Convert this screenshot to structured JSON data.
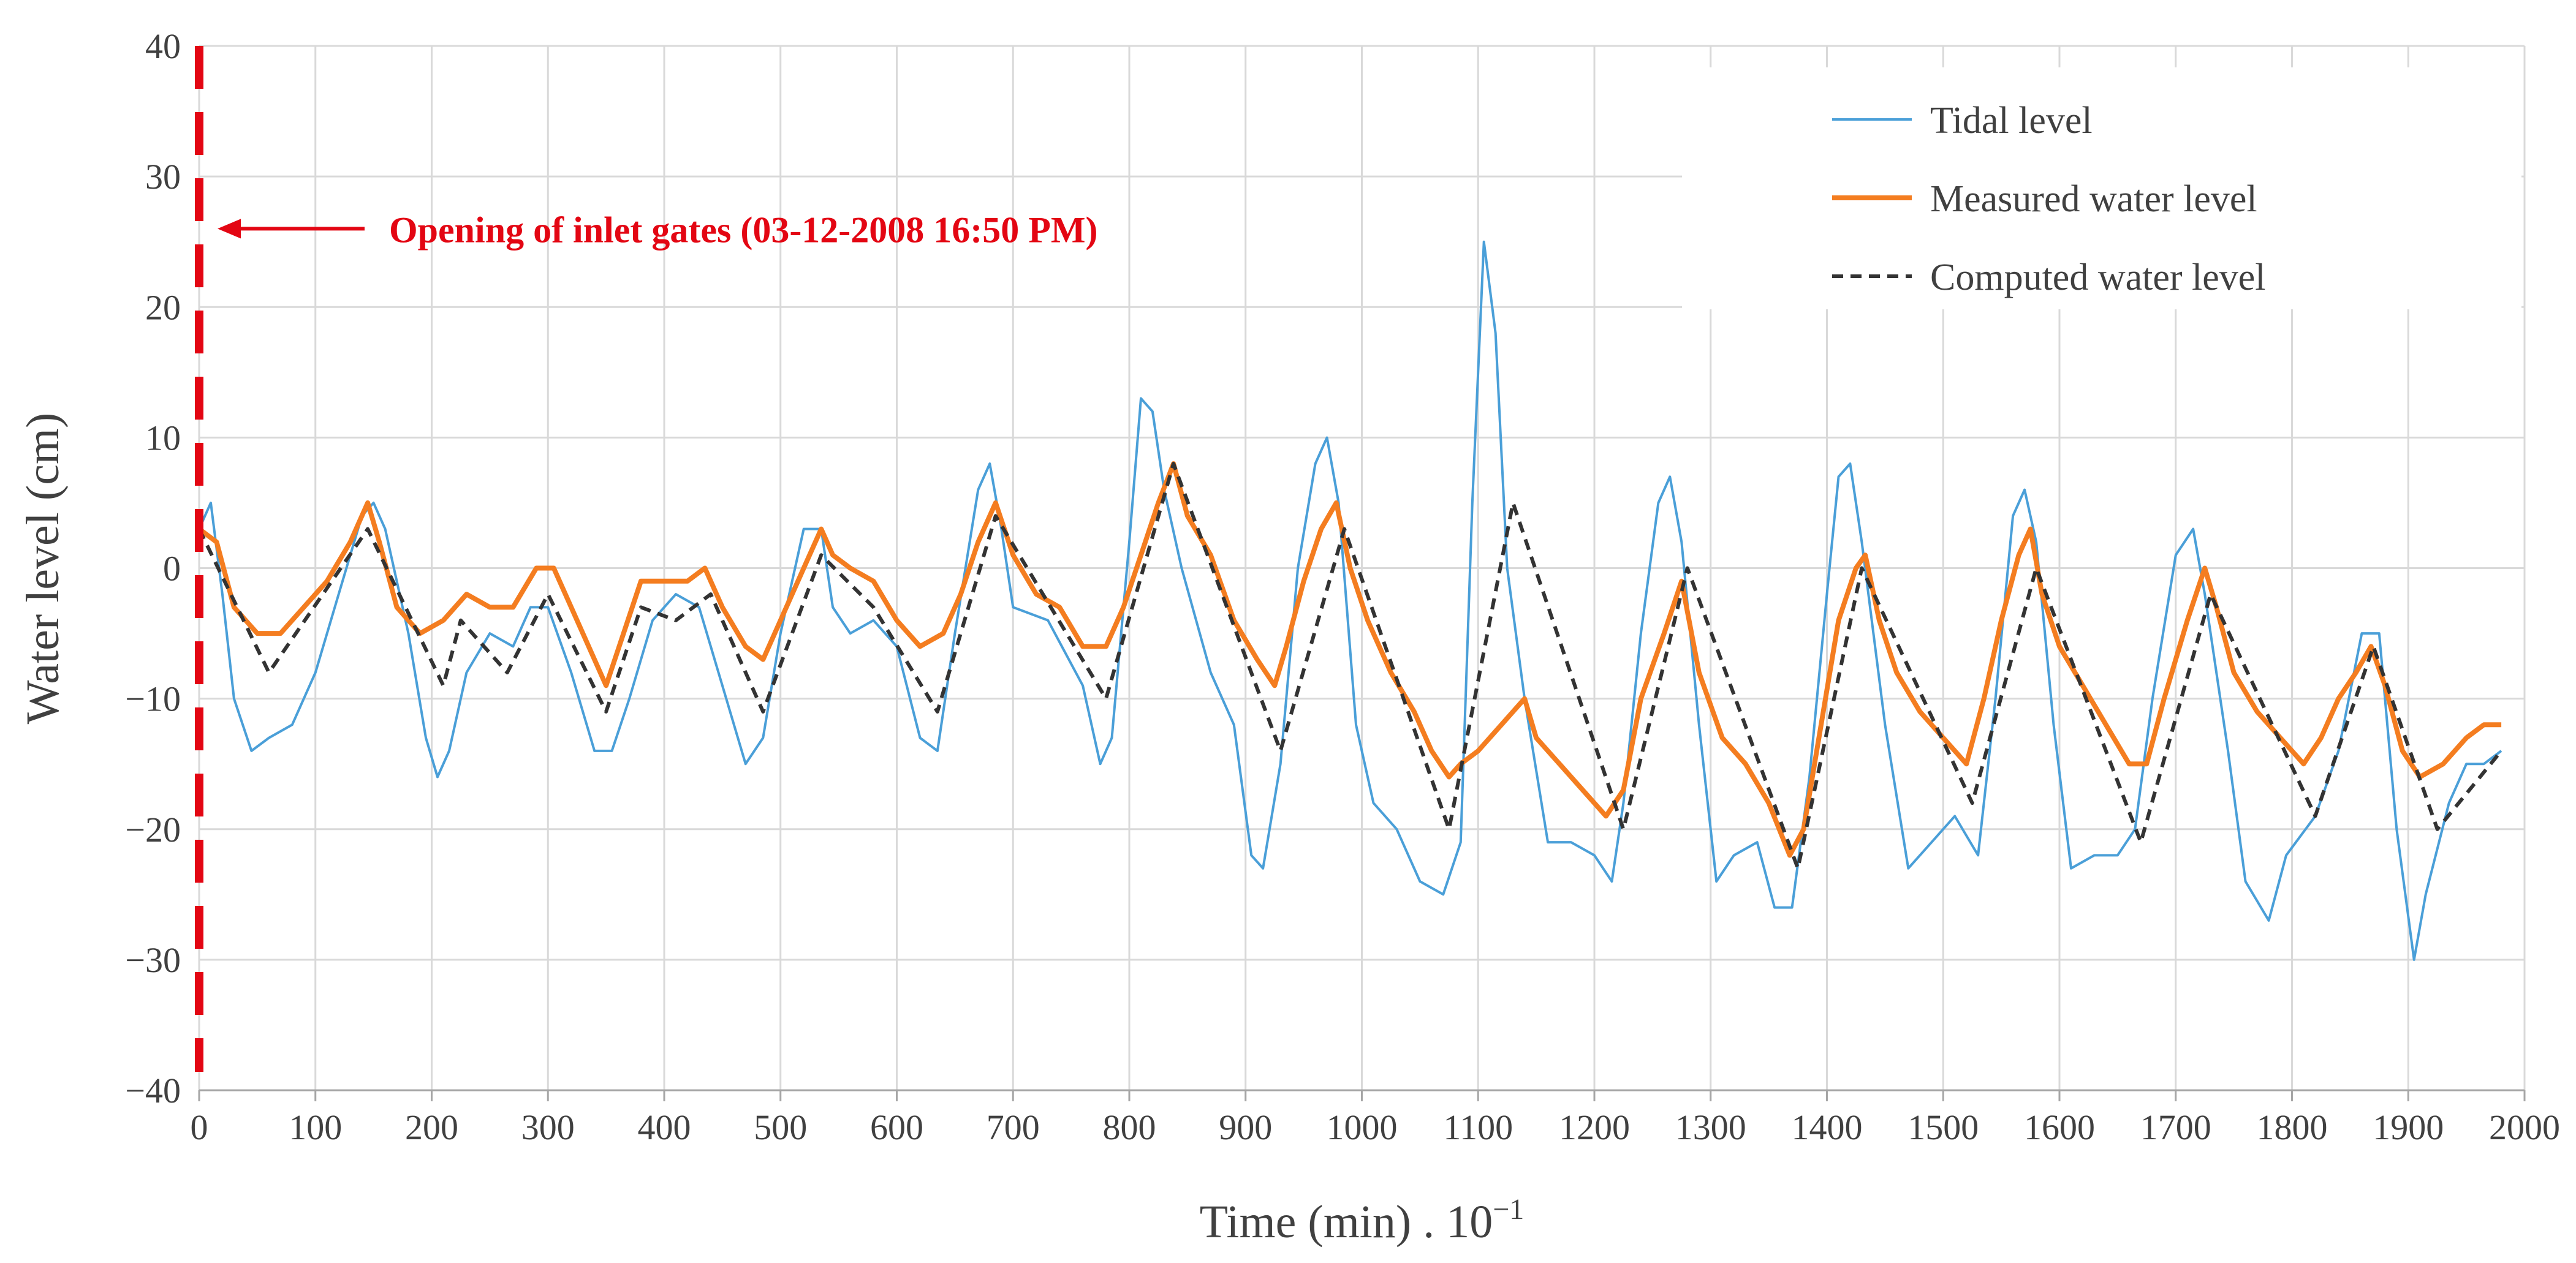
{
  "chart_data": {
    "type": "line",
    "title": "",
    "xlabel": "Time (min) . 10",
    "xlabel_exponent": "−1",
    "ylabel": "Water level (cm)",
    "xlim": [
      0,
      2000
    ],
    "ylim": [
      -40,
      40
    ],
    "x_ticks": [
      0,
      100,
      200,
      300,
      400,
      500,
      600,
      700,
      800,
      900,
      1000,
      1100,
      1200,
      1300,
      1400,
      1500,
      1600,
      1700,
      1800,
      1900,
      2000
    ],
    "y_ticks": [
      40,
      30,
      20,
      10,
      0,
      -10,
      -20,
      -30,
      -40
    ],
    "y_tick_labels": [
      "40",
      "30",
      "20",
      "10",
      "0",
      "−10",
      "−20",
      "−30",
      "−40"
    ],
    "grid": true,
    "legend_position": "top-right",
    "series": [
      {
        "name": "Tidal level",
        "color": "#4a9fd8",
        "style": "solid",
        "points": [
          [
            0,
            3
          ],
          [
            10,
            5
          ],
          [
            20,
            -2
          ],
          [
            30,
            -10
          ],
          [
            45,
            -14
          ],
          [
            60,
            -13
          ],
          [
            80,
            -12
          ],
          [
            100,
            -8
          ],
          [
            120,
            -2
          ],
          [
            140,
            4
          ],
          [
            150,
            5
          ],
          [
            160,
            3
          ],
          [
            180,
            -5
          ],
          [
            195,
            -13
          ],
          [
            205,
            -16
          ],
          [
            215,
            -14
          ],
          [
            230,
            -8
          ],
          [
            250,
            -5
          ],
          [
            270,
            -6
          ],
          [
            285,
            -3
          ],
          [
            300,
            -3
          ],
          [
            320,
            -8
          ],
          [
            340,
            -14
          ],
          [
            355,
            -14
          ],
          [
            370,
            -10
          ],
          [
            390,
            -4
          ],
          [
            410,
            -2
          ],
          [
            430,
            -3
          ],
          [
            450,
            -9
          ],
          [
            470,
            -15
          ],
          [
            485,
            -13
          ],
          [
            500,
            -5
          ],
          [
            520,
            3
          ],
          [
            535,
            3
          ],
          [
            545,
            -3
          ],
          [
            560,
            -5
          ],
          [
            580,
            -4
          ],
          [
            600,
            -6
          ],
          [
            620,
            -13
          ],
          [
            635,
            -14
          ],
          [
            650,
            -5
          ],
          [
            670,
            6
          ],
          [
            680,
            8
          ],
          [
            690,
            3
          ],
          [
            700,
            -3
          ],
          [
            730,
            -4
          ],
          [
            760,
            -9
          ],
          [
            775,
            -15
          ],
          [
            785,
            -13
          ],
          [
            800,
            2
          ],
          [
            810,
            13
          ],
          [
            820,
            12
          ],
          [
            830,
            6
          ],
          [
            845,
            0
          ],
          [
            870,
            -8
          ],
          [
            890,
            -12
          ],
          [
            905,
            -22
          ],
          [
            915,
            -23
          ],
          [
            930,
            -15
          ],
          [
            945,
            0
          ],
          [
            960,
            8
          ],
          [
            970,
            10
          ],
          [
            980,
            5
          ],
          [
            995,
            -12
          ],
          [
            1010,
            -18
          ],
          [
            1030,
            -20
          ],
          [
            1050,
            -24
          ],
          [
            1070,
            -25
          ],
          [
            1085,
            -21
          ],
          [
            1095,
            5
          ],
          [
            1105,
            25
          ],
          [
            1115,
            18
          ],
          [
            1125,
            0
          ],
          [
            1140,
            -10
          ],
          [
            1160,
            -21
          ],
          [
            1180,
            -21
          ],
          [
            1200,
            -22
          ],
          [
            1215,
            -24
          ],
          [
            1225,
            -18
          ],
          [
            1240,
            -5
          ],
          [
            1255,
            5
          ],
          [
            1265,
            7
          ],
          [
            1275,
            2
          ],
          [
            1290,
            -12
          ],
          [
            1305,
            -24
          ],
          [
            1320,
            -22
          ],
          [
            1340,
            -21
          ],
          [
            1355,
            -26
          ],
          [
            1370,
            -26
          ],
          [
            1385,
            -16
          ],
          [
            1400,
            -2
          ],
          [
            1410,
            7
          ],
          [
            1420,
            8
          ],
          [
            1430,
            2
          ],
          [
            1450,
            -12
          ],
          [
            1470,
            -23
          ],
          [
            1490,
            -21
          ],
          [
            1510,
            -19
          ],
          [
            1530,
            -22
          ],
          [
            1545,
            -10
          ],
          [
            1560,
            4
          ],
          [
            1570,
            6
          ],
          [
            1580,
            2
          ],
          [
            1595,
            -12
          ],
          [
            1610,
            -23
          ],
          [
            1630,
            -22
          ],
          [
            1650,
            -22
          ],
          [
            1665,
            -20
          ],
          [
            1680,
            -10
          ],
          [
            1700,
            1
          ],
          [
            1715,
            3
          ],
          [
            1725,
            -2
          ],
          [
            1745,
            -14
          ],
          [
            1760,
            -24
          ],
          [
            1780,
            -27
          ],
          [
            1795,
            -22
          ],
          [
            1820,
            -19
          ],
          [
            1840,
            -14
          ],
          [
            1860,
            -5
          ],
          [
            1875,
            -5
          ],
          [
            1890,
            -20
          ],
          [
            1905,
            -30
          ],
          [
            1915,
            -25
          ],
          [
            1935,
            -18
          ],
          [
            1950,
            -15
          ],
          [
            1965,
            -15
          ],
          [
            1980,
            -14
          ]
        ]
      },
      {
        "name": "Measured water level",
        "color": "#f47d20",
        "style": "solid",
        "points": [
          [
            0,
            3
          ],
          [
            15,
            2
          ],
          [
            30,
            -3
          ],
          [
            50,
            -5
          ],
          [
            70,
            -5
          ],
          [
            90,
            -3
          ],
          [
            110,
            -1
          ],
          [
            130,
            2
          ],
          [
            145,
            5
          ],
          [
            155,
            2
          ],
          [
            170,
            -3
          ],
          [
            190,
            -5
          ],
          [
            210,
            -4
          ],
          [
            230,
            -2
          ],
          [
            250,
            -3
          ],
          [
            270,
            -3
          ],
          [
            290,
            0
          ],
          [
            305,
            0
          ],
          [
            320,
            -3
          ],
          [
            340,
            -7
          ],
          [
            350,
            -9
          ],
          [
            365,
            -5
          ],
          [
            380,
            -1
          ],
          [
            400,
            -1
          ],
          [
            420,
            -1
          ],
          [
            435,
            0
          ],
          [
            450,
            -3
          ],
          [
            470,
            -6
          ],
          [
            485,
            -7
          ],
          [
            500,
            -4
          ],
          [
            520,
            0
          ],
          [
            535,
            3
          ],
          [
            545,
            1
          ],
          [
            560,
            0
          ],
          [
            580,
            -1
          ],
          [
            600,
            -4
          ],
          [
            620,
            -6
          ],
          [
            640,
            -5
          ],
          [
            655,
            -2
          ],
          [
            670,
            2
          ],
          [
            685,
            5
          ],
          [
            700,
            1
          ],
          [
            720,
            -2
          ],
          [
            740,
            -3
          ],
          [
            760,
            -6
          ],
          [
            780,
            -6
          ],
          [
            795,
            -3
          ],
          [
            810,
            1
          ],
          [
            825,
            5
          ],
          [
            838,
            8
          ],
          [
            850,
            4
          ],
          [
            870,
            1
          ],
          [
            890,
            -4
          ],
          [
            910,
            -7
          ],
          [
            925,
            -9
          ],
          [
            935,
            -6
          ],
          [
            950,
            -1
          ],
          [
            965,
            3
          ],
          [
            978,
            5
          ],
          [
            990,
            0
          ],
          [
            1005,
            -4
          ],
          [
            1025,
            -8
          ],
          [
            1045,
            -11
          ],
          [
            1060,
            -14
          ],
          [
            1075,
            -16
          ],
          [
            1085,
            -15
          ],
          [
            1100,
            -14
          ],
          [
            1120,
            -12
          ],
          [
            1140,
            -10
          ],
          [
            1150,
            -13
          ],
          [
            1170,
            -15
          ],
          [
            1190,
            -17
          ],
          [
            1210,
            -19
          ],
          [
            1225,
            -17
          ],
          [
            1240,
            -10
          ],
          [
            1260,
            -5
          ],
          [
            1275,
            -1
          ],
          [
            1290,
            -8
          ],
          [
            1310,
            -13
          ],
          [
            1330,
            -15
          ],
          [
            1350,
            -18
          ],
          [
            1368,
            -22
          ],
          [
            1380,
            -20
          ],
          [
            1395,
            -12
          ],
          [
            1410,
            -4
          ],
          [
            1425,
            0
          ],
          [
            1433,
            1
          ],
          [
            1445,
            -4
          ],
          [
            1460,
            -8
          ],
          [
            1480,
            -11
          ],
          [
            1500,
            -13
          ],
          [
            1520,
            -15
          ],
          [
            1535,
            -10
          ],
          [
            1550,
            -4
          ],
          [
            1565,
            1
          ],
          [
            1575,
            3
          ],
          [
            1585,
            -2
          ],
          [
            1600,
            -6
          ],
          [
            1620,
            -9
          ],
          [
            1640,
            -12
          ],
          [
            1660,
            -15
          ],
          [
            1675,
            -15
          ],
          [
            1690,
            -10
          ],
          [
            1710,
            -4
          ],
          [
            1725,
            0
          ],
          [
            1735,
            -3
          ],
          [
            1750,
            -8
          ],
          [
            1770,
            -11
          ],
          [
            1790,
            -13
          ],
          [
            1810,
            -15
          ],
          [
            1825,
            -13
          ],
          [
            1840,
            -10
          ],
          [
            1855,
            -8
          ],
          [
            1868,
            -6
          ],
          [
            1880,
            -9
          ],
          [
            1895,
            -14
          ],
          [
            1910,
            -16
          ],
          [
            1930,
            -15
          ],
          [
            1950,
            -13
          ],
          [
            1965,
            -12
          ],
          [
            1980,
            -12
          ]
        ]
      },
      {
        "name": "Computed water level",
        "color": "#333333",
        "style": "dashed",
        "points": [
          [
            0,
            3
          ],
          [
            60,
            -8
          ],
          [
            145,
            3
          ],
          [
            210,
            -9
          ],
          [
            225,
            -4
          ],
          [
            265,
            -8
          ],
          [
            300,
            -2
          ],
          [
            350,
            -11
          ],
          [
            380,
            -3
          ],
          [
            410,
            -4
          ],
          [
            440,
            -2
          ],
          [
            485,
            -11
          ],
          [
            535,
            1
          ],
          [
            580,
            -3
          ],
          [
            635,
            -11
          ],
          [
            685,
            4
          ],
          [
            780,
            -10
          ],
          [
            838,
            8
          ],
          [
            930,
            -14
          ],
          [
            985,
            3
          ],
          [
            1075,
            -20
          ],
          [
            1130,
            5
          ],
          [
            1225,
            -20
          ],
          [
            1280,
            0
          ],
          [
            1375,
            -23
          ],
          [
            1430,
            0
          ],
          [
            1525,
            -18
          ],
          [
            1580,
            0
          ],
          [
            1670,
            -21
          ],
          [
            1730,
            -2
          ],
          [
            1820,
            -19
          ],
          [
            1870,
            -6
          ],
          [
            1925,
            -20
          ],
          [
            1980,
            -14
          ]
        ]
      }
    ],
    "annotations": [
      {
        "text": "Opening of inlet gates (03-12-2008 16:50 PM)",
        "x": 0,
        "y": 26,
        "color": "#e30613",
        "marker_line": "vertical dashed at x = 0"
      }
    ]
  }
}
